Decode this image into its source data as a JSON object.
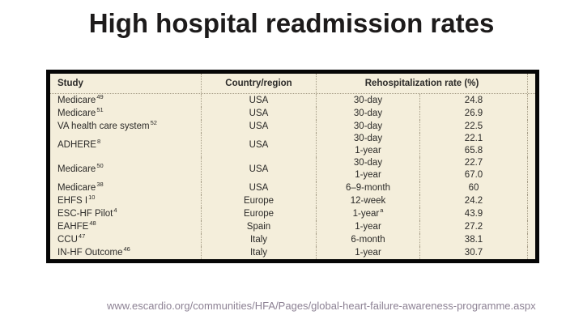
{
  "slide": {
    "title": "High hospital readmission rates",
    "source_url": "www.escardio.org/communities/HFA/Pages/global-heart-failure-awareness-programme.aspx"
  },
  "colors": {
    "title_text": "#1d1b1b",
    "table_background": "#f4eedb",
    "table_border": "#060606",
    "table_text": "#2b2a28",
    "dotted_line": "#a69d87",
    "url_text": "#8d8294"
  },
  "table": {
    "headers": {
      "study": "Study",
      "country": "Country/region",
      "rate": "Rehospitalization rate (%)"
    },
    "rows": [
      {
        "study": "Medicare",
        "ref": "49",
        "country": "USA",
        "periods": [
          "30-day"
        ],
        "values": [
          "24.8"
        ]
      },
      {
        "study": "Medicare",
        "ref": "51",
        "country": "USA",
        "periods": [
          "30-day"
        ],
        "values": [
          "26.9"
        ]
      },
      {
        "study": "VA health care system",
        "ref": "52",
        "country": "USA",
        "periods": [
          "30-day"
        ],
        "values": [
          "22.5"
        ]
      },
      {
        "study": "ADHERE",
        "ref": "8",
        "country": "USA",
        "periods": [
          "30-day",
          "1-year"
        ],
        "values": [
          "22.1",
          "65.8"
        ]
      },
      {
        "study": "Medicare",
        "ref": "50",
        "country": "USA",
        "periods": [
          "30-day",
          "1-year"
        ],
        "values": [
          "22.7",
          "67.0"
        ]
      },
      {
        "study": "Medicare",
        "ref": "38",
        "country": "USA",
        "periods": [
          "6–9-month"
        ],
        "values": [
          "60"
        ]
      },
      {
        "study": "EHFS I",
        "ref": "10",
        "country": "Europe",
        "periods": [
          "12-week"
        ],
        "values": [
          "24.2"
        ]
      },
      {
        "study": "ESC-HF Pilot",
        "ref": "4",
        "country": "Europe",
        "periods": [
          "1-year"
        ],
        "period_note": "a",
        "values": [
          "43.9"
        ]
      },
      {
        "study": "EAHFE",
        "ref": "48",
        "country": "Spain",
        "periods": [
          "1-year"
        ],
        "values": [
          "27.2"
        ]
      },
      {
        "study": "CCU",
        "ref": "47",
        "country": "Italy",
        "periods": [
          "6-month"
        ],
        "values": [
          "38.1"
        ]
      },
      {
        "study": "IN-HF Outcome",
        "ref": "46",
        "country": "Italy",
        "periods": [
          "1-year"
        ],
        "values": [
          "30.7"
        ]
      }
    ]
  }
}
